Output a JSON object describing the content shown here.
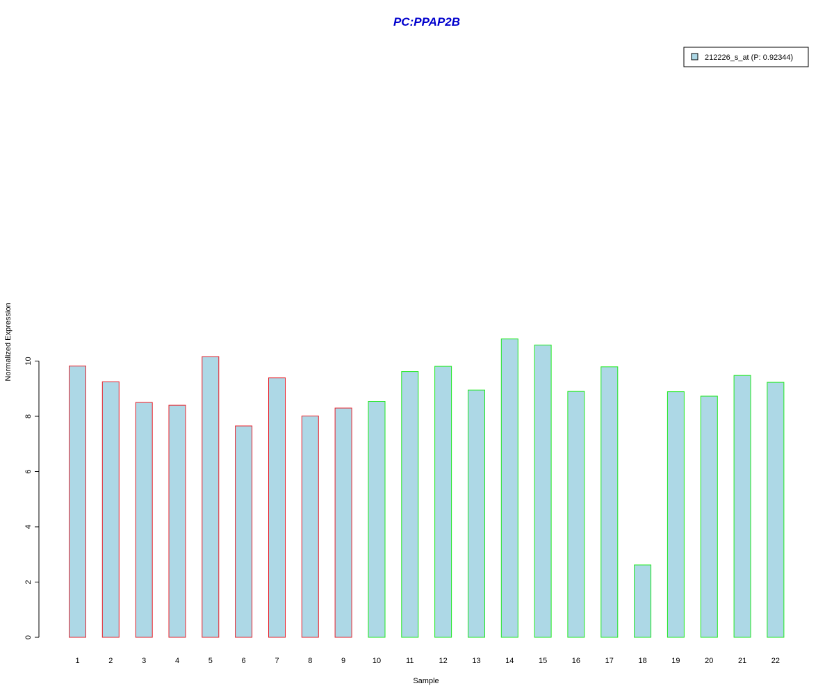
{
  "chart_data": {
    "type": "bar",
    "title": "PC:PPAP2B",
    "xlabel": "Sample",
    "ylabel": "Normalized Expression",
    "categories": [
      "1",
      "2",
      "3",
      "4",
      "5",
      "6",
      "7",
      "8",
      "9",
      "10",
      "11",
      "12",
      "13",
      "14",
      "15",
      "16",
      "17",
      "18",
      "19",
      "20",
      "21",
      "22"
    ],
    "series": [
      {
        "name": "212226_s_at (P: 0.92344)",
        "values": [
          9.82,
          9.25,
          8.5,
          8.4,
          10.16,
          7.65,
          9.39,
          8.01,
          8.3,
          8.54,
          9.62,
          9.81,
          8.95,
          10.8,
          10.58,
          8.9,
          9.79,
          2.62,
          8.89,
          8.73,
          9.48,
          9.23
        ]
      }
    ],
    "bar_outline_groups": [
      {
        "from": 1,
        "to": 9,
        "color": "#e8202a"
      },
      {
        "from": 10,
        "to": 22,
        "color": "#1ee81e"
      }
    ],
    "bar_fill": "#add8e6",
    "yticks": [
      "0",
      "2",
      "4",
      "6",
      "8",
      "10"
    ],
    "ylim": [
      0,
      10.8
    ],
    "legend_placement": "top-right",
    "grid": false
  }
}
